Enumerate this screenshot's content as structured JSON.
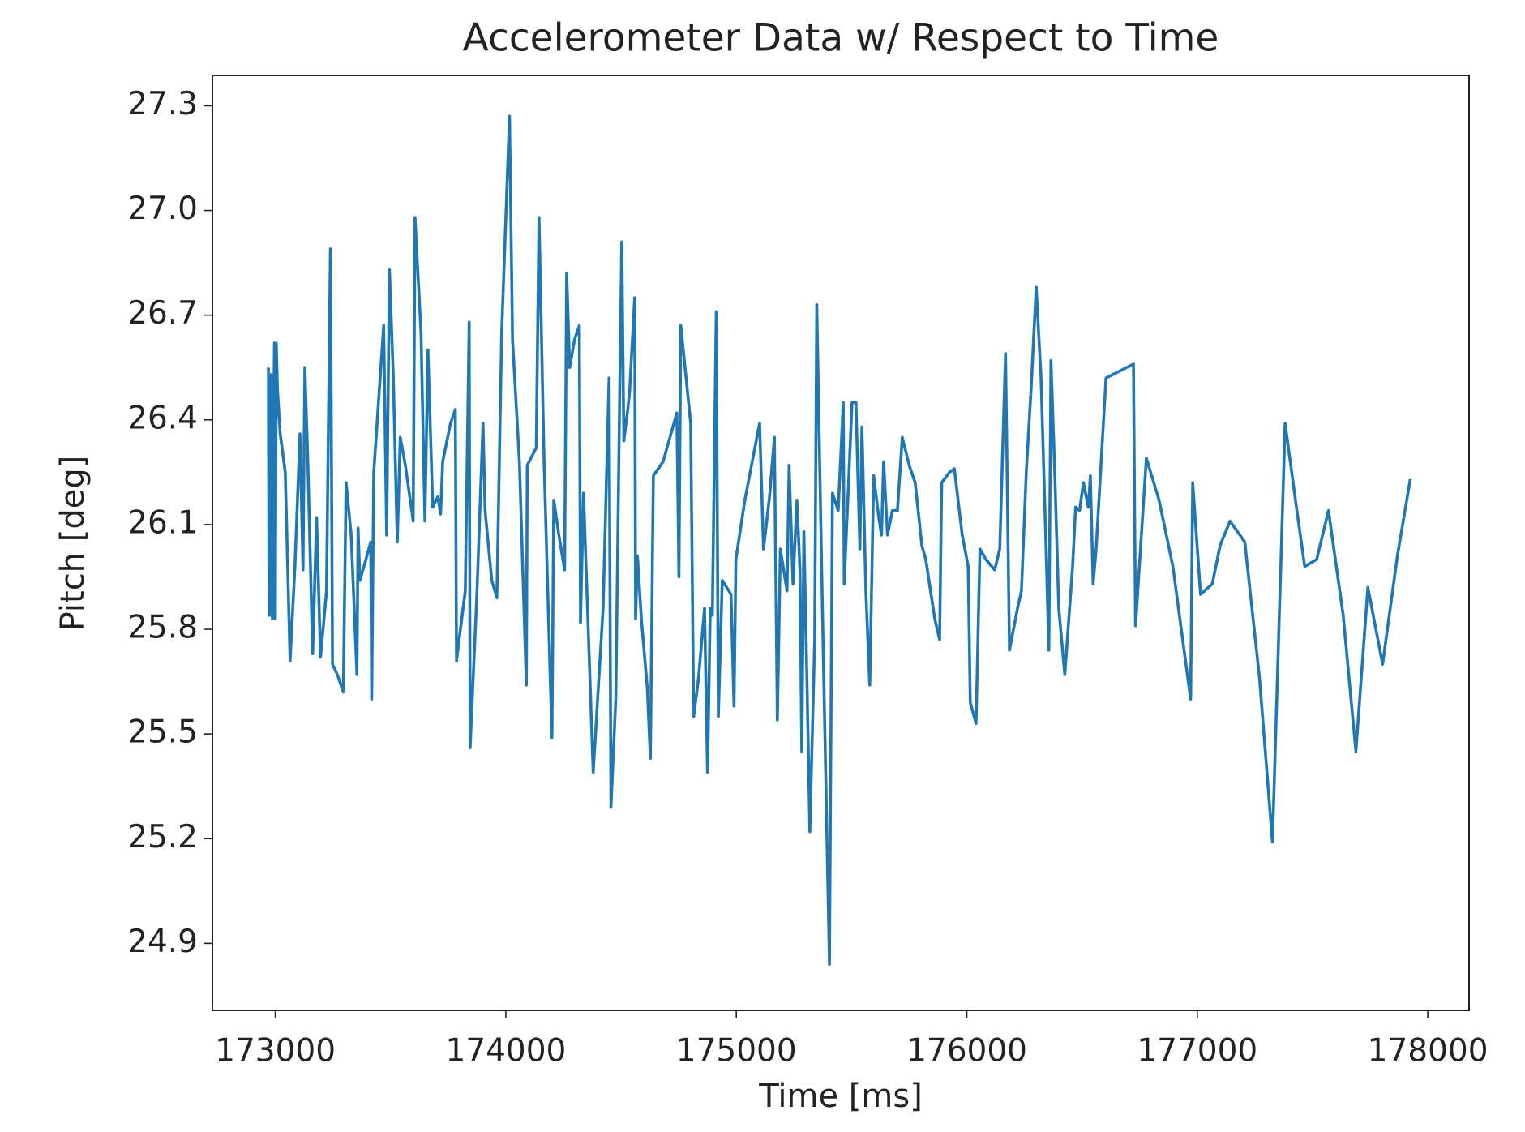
{
  "chart_data": {
    "type": "line",
    "title": "Accelerometer Data w/ Respect to Time",
    "xlabel": "Time [ms]",
    "ylabel": "Pitch [deg]",
    "xlim": [
      172727,
      178179
    ],
    "ylim": [
      24.708,
      27.387
    ],
    "xticks": [
      173000,
      174000,
      175000,
      176000,
      177000,
      178000
    ],
    "yticks": [
      24.9,
      25.2,
      25.5,
      25.8,
      26.1,
      26.4,
      26.7,
      {
        "value": 27,
        "label": "27.0"
      },
      27.3
    ],
    "grid": false,
    "series": [
      {
        "color": "#1f77b4",
        "x": [
          172970,
          172972,
          172974,
          172983,
          172987,
          172996,
          173000,
          173004,
          173009,
          173021,
          173043,
          173064,
          173085,
          173107,
          173120,
          173128,
          173141,
          173162,
          173179,
          173196,
          173222,
          173239,
          173248,
          173269,
          173295,
          173307,
          173329,
          173354,
          173359,
          173367,
          173393,
          173414,
          173418,
          173427,
          173470,
          173483,
          173495,
          173512,
          173529,
          173542,
          173564,
          173598,
          173606,
          173632,
          173649,
          173662,
          173683,
          173705,
          173717,
          173726,
          173760,
          173781,
          173786,
          173803,
          173824,
          173841,
          173845,
          173875,
          173901,
          173910,
          173939,
          173961,
          173982,
          174016,
          174029,
          174059,
          174089,
          174093,
          174132,
          174144,
          174166,
          174200,
          174208,
          174230,
          174255,
          174264,
          174277,
          174298,
          174319,
          174324,
          174337,
          174379,
          174422,
          174448,
          174456,
          174477,
          174495,
          174503,
          174512,
          174529,
          174537,
          174559,
          174563,
          174571,
          174588,
          174614,
          174627,
          174640,
          174682,
          174742,
          174751,
          174759,
          174802,
          174815,
          174836,
          174862,
          174875,
          174887,
          174896,
          174913,
          174922,
          174939,
          174977,
          174990,
          174998,
          175037,
          175092,
          175101,
          175118,
          175144,
          175165,
          175178,
          175191,
          175220,
          175229,
          175246,
          175263,
          175276,
          175284,
          175293,
          175306,
          175319,
          175340,
          175349,
          175370,
          175404,
          175417,
          175442,
          175464,
          175468,
          175502,
          175519,
          175536,
          175545,
          175562,
          175579,
          175596,
          175618,
          175630,
          175639,
          175656,
          175677,
          175699,
          175720,
          175750,
          175776,
          175805,
          175822,
          175861,
          175882,
          175891,
          175925,
          175946,
          175980,
          176006,
          176015,
          176040,
          176057,
          176083,
          176121,
          176143,
          176168,
          176185,
          176220,
          176237,
          176258,
          176279,
          176301,
          176322,
          176343,
          176356,
          176365,
          176382,
          176399,
          176425,
          176459,
          176472,
          176489,
          176506,
          176527,
          176536,
          176548,
          176561,
          176604,
          176723,
          176732,
          176779,
          176834,
          176894,
          176971,
          176980,
          177014,
          177065,
          177099,
          177142,
          177206,
          177270,
          177326,
          177381,
          177432,
          177466,
          177518,
          177569,
          177633,
          177688,
          177740,
          177804,
          177868,
          177924
        ],
        "values": [
          26.55,
          26.01,
          25.84,
          26.53,
          25.83,
          26.62,
          25.83,
          26.62,
          26.49,
          26.36,
          26.25,
          25.71,
          25.98,
          26.36,
          25.97,
          26.55,
          26.28,
          25.73,
          26.12,
          25.72,
          25.91,
          26.89,
          25.7,
          25.67,
          25.62,
          26.22,
          26.07,
          25.67,
          26.09,
          25.94,
          26.0,
          26.05,
          25.6,
          26.25,
          26.67,
          26.07,
          26.83,
          26.52,
          26.05,
          26.35,
          26.27,
          26.11,
          26.98,
          26.65,
          26.11,
          26.6,
          26.15,
          26.18,
          26.13,
          26.28,
          26.39,
          26.43,
          25.71,
          25.8,
          25.91,
          26.68,
          25.46,
          25.91,
          26.39,
          26.14,
          25.94,
          25.89,
          26.65,
          27.27,
          26.63,
          26.28,
          25.64,
          26.27,
          26.32,
          26.98,
          26.28,
          25.49,
          26.17,
          26.07,
          25.97,
          26.82,
          26.55,
          26.63,
          26.67,
          25.82,
          26.19,
          25.39,
          25.86,
          26.52,
          25.29,
          25.6,
          26.53,
          26.91,
          26.34,
          26.43,
          26.48,
          26.75,
          25.83,
          26.01,
          25.83,
          25.63,
          25.43,
          26.24,
          26.28,
          26.42,
          25.95,
          26.67,
          26.39,
          25.55,
          25.66,
          25.86,
          25.39,
          25.86,
          25.84,
          26.71,
          25.55,
          25.94,
          25.9,
          25.58,
          26.0,
          26.17,
          26.36,
          26.39,
          26.03,
          26.18,
          26.35,
          25.54,
          26.03,
          25.91,
          26.27,
          25.93,
          26.17,
          25.97,
          25.45,
          26.08,
          25.67,
          25.22,
          25.77,
          26.73,
          25.98,
          24.84,
          26.19,
          26.14,
          26.45,
          25.93,
          26.45,
          26.45,
          26.03,
          26.38,
          25.91,
          25.64,
          26.24,
          26.12,
          26.07,
          26.28,
          26.07,
          26.14,
          26.14,
          26.35,
          26.27,
          26.22,
          26.04,
          26.0,
          25.83,
          25.77,
          26.22,
          26.25,
          26.26,
          26.07,
          25.98,
          25.59,
          25.53,
          26.03,
          26.0,
          25.97,
          26.03,
          26.59,
          25.74,
          25.86,
          25.91,
          26.25,
          26.49,
          26.78,
          26.52,
          26.05,
          25.74,
          26.57,
          26.24,
          25.86,
          25.67,
          25.98,
          26.15,
          26.14,
          26.22,
          26.15,
          26.24,
          25.93,
          26.03,
          26.52,
          26.56,
          25.81,
          26.29,
          26.17,
          25.98,
          25.6,
          26.22,
          25.9,
          25.93,
          26.04,
          26.11,
          26.05,
          25.66,
          25.19,
          26.39,
          26.14,
          25.98,
          26.0,
          26.14,
          25.84,
          25.45,
          25.92,
          25.7,
          26.01,
          26.23
        ]
      }
    ]
  }
}
